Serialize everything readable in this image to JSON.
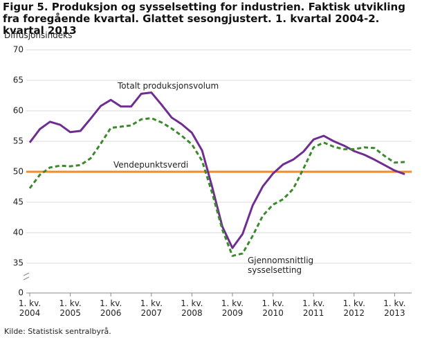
{
  "chart_data": {
    "type": "line",
    "title": "Figur 5. Produksjon og sysselsetting for industrien. Faktisk utvikling fra foregående kvartal. Glattet sesongjustert. 1. kvartal 2004-2. kvartal 2013",
    "y_label": "Diffusjonsindeks",
    "source": "Kilde: Statistisk sentralbyrå.",
    "categories": [
      "1. kv. 2004",
      null,
      null,
      null,
      "1. kv. 2005",
      null,
      null,
      null,
      "1. kv. 2006",
      null,
      null,
      null,
      "1. kv. 2007",
      null,
      null,
      null,
      "1. kv. 2008",
      null,
      null,
      null,
      "1. kv. 2009",
      null,
      null,
      null,
      "1. kv. 2010",
      null,
      null,
      null,
      "1. kv. 2011",
      null,
      null,
      null,
      "1. kv. 2012",
      null,
      null,
      null,
      "1. kv. 2013",
      null
    ],
    "series": [
      {
        "name": "Totalt produksjonsvolum",
        "color": "#6f2c91",
        "dashed": false,
        "values": [
          54.8,
          57.0,
          58.2,
          57.7,
          56.5,
          56.7,
          58.7,
          60.8,
          61.8,
          60.7,
          60.7,
          62.8,
          63.0,
          61.0,
          58.9,
          57.8,
          56.4,
          53.5,
          47.5,
          41.0,
          37.5,
          39.8,
          44.5,
          47.6,
          49.7,
          51.2,
          52.0,
          53.3,
          55.3,
          55.9,
          55.0,
          54.3,
          53.4,
          52.8,
          52.0,
          51.1,
          50.2,
          49.6
        ]
      },
      {
        "name": "Gjennomsnittlig sysselsetting",
        "color": "#3a8a2c",
        "dashed": true,
        "values": [
          47.3,
          49.5,
          50.7,
          51.0,
          50.9,
          51.1,
          52.2,
          54.6,
          57.2,
          57.4,
          57.6,
          58.6,
          58.8,
          58.1,
          57.1,
          55.9,
          54.5,
          51.8,
          46.5,
          40.5,
          36.2,
          36.6,
          39.5,
          42.8,
          44.6,
          45.5,
          47.2,
          50.5,
          54.0,
          54.8,
          54.1,
          53.7,
          53.7,
          54.0,
          53.9,
          52.6,
          51.5,
          51.6
        ]
      }
    ],
    "reference_lines": [
      {
        "value": 50,
        "label": "Vendepunktsverdi",
        "color": "#f08c2c"
      }
    ],
    "ylim": [
      0,
      70
    ],
    "axis_break": [
      0,
      35
    ],
    "yticks": [
      0,
      35,
      40,
      45,
      50,
      55,
      60,
      65,
      70
    ],
    "grid": true
  }
}
